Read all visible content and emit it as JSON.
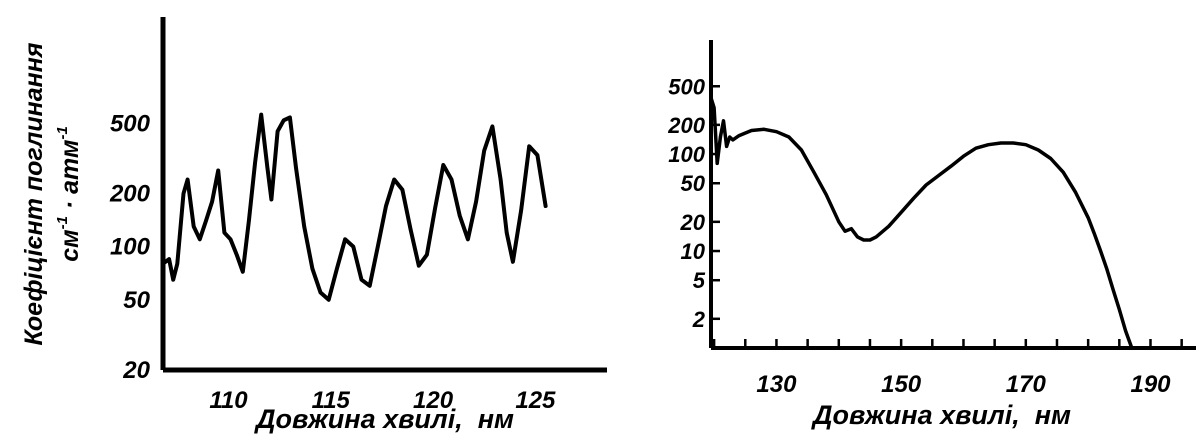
{
  "figure": {
    "ylabel_line1": "Коефіцієнт поглинання",
    "ylabel_unit_a": "см",
    "ylabel_exp_a": "-1",
    "ylabel_dot": " · ",
    "ylabel_unit_b": "атм",
    "ylabel_exp_b": "-1"
  },
  "chart_data": [
    {
      "type": "line",
      "xlabel": "Довжина хвилі,  нм",
      "ylabel": "Коефіцієнт поглинання см-1·атм-1",
      "yscale": "log",
      "xlim": [
        106.8,
        128.5
      ],
      "ylim": [
        20,
        2000
      ],
      "xticks": [
        110,
        115,
        120,
        125
      ],
      "yticks": [
        20,
        50,
        100,
        200,
        500
      ],
      "grid": false,
      "series": [
        {
          "x": [
            106.8,
            107.1,
            107.3,
            107.5,
            107.8,
            108.0,
            108.3,
            108.6,
            108.9,
            109.2,
            109.5,
            109.8,
            110.1,
            110.4,
            110.7,
            111.0,
            111.3,
            111.6,
            111.9,
            112.1,
            112.4,
            112.7,
            113.0,
            113.3,
            113.7,
            114.1,
            114.5,
            114.9,
            115.3,
            115.7,
            116.1,
            116.5,
            116.9,
            117.3,
            117.7,
            118.1,
            118.5,
            118.9,
            119.3,
            119.7,
            120.1,
            120.5,
            120.9,
            121.3,
            121.7,
            122.1,
            122.5,
            122.9,
            123.3,
            123.6,
            123.9,
            124.3,
            124.7,
            125.1,
            125.5
          ],
          "y": [
            80,
            85,
            65,
            80,
            200,
            240,
            130,
            110,
            140,
            180,
            270,
            120,
            110,
            90,
            72,
            140,
            300,
            560,
            280,
            185,
            450,
            520,
            540,
            280,
            130,
            75,
            55,
            50,
            75,
            110,
            100,
            65,
            60,
            100,
            170,
            240,
            210,
            125,
            78,
            90,
            165,
            290,
            240,
            150,
            110,
            180,
            350,
            480,
            240,
            120,
            82,
            160,
            370,
            330,
            170
          ]
        }
      ]
    },
    {
      "type": "line",
      "xlabel": "Довжина хвилі,  нм",
      "yscale": "log",
      "xlim": [
        119.5,
        197.3
      ],
      "ylim": [
        1,
        1500
      ],
      "xticks": [
        130,
        150,
        170,
        190
      ],
      "yticks": [
        2,
        5,
        10,
        20,
        50,
        100,
        200,
        500
      ],
      "grid": false,
      "series": [
        {
          "x": [
            119.5,
            120.0,
            120.5,
            121.0,
            121.5,
            122.0,
            122.5,
            123.0,
            124.0,
            126.0,
            128.0,
            130.0,
            132.0,
            134.0,
            136.0,
            138.0,
            140.0,
            141.0,
            142.0,
            143.0,
            144.0,
            145.0,
            146.0,
            148.0,
            150.0,
            152.0,
            154.0,
            156.0,
            158.0,
            160.0,
            162.0,
            164.0,
            166.0,
            168.0,
            170.0,
            172.0,
            174.0,
            176.0,
            178.0,
            180.0,
            181.0,
            182.0,
            183.0,
            184.0,
            185.0,
            186.0,
            187.0
          ],
          "y": [
            380,
            300,
            80,
            150,
            220,
            120,
            150,
            140,
            155,
            175,
            180,
            170,
            150,
            110,
            65,
            38,
            20,
            16,
            17,
            14,
            13,
            13,
            14,
            18,
            25,
            35,
            48,
            60,
            75,
            95,
            115,
            125,
            130,
            130,
            125,
            110,
            90,
            65,
            40,
            22,
            15,
            10,
            6.5,
            4,
            2.5,
            1.5,
            1.0
          ]
        }
      ]
    }
  ]
}
